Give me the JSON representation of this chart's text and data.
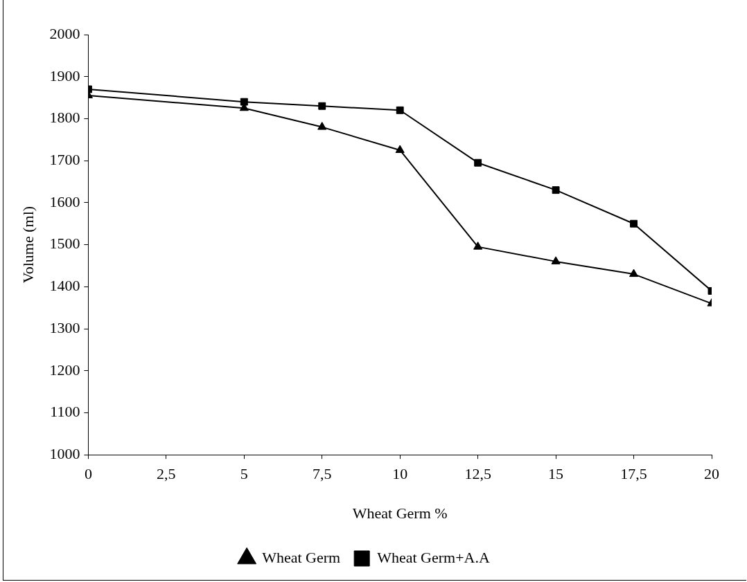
{
  "chart_data": {
    "type": "line",
    "xlabel": "Wheat Germ %",
    "ylabel": "Volume (ml)",
    "x": [
      0,
      5,
      7.5,
      10,
      12.5,
      15,
      17.5,
      20
    ],
    "series": [
      {
        "name": "Wheat Germ",
        "color": "#000000",
        "marker": "triangle",
        "values": [
          1855,
          1825,
          1780,
          1725,
          1495,
          1460,
          1430,
          1360
        ]
      },
      {
        "name": "Wheat Germ+A.A",
        "color": "#000000",
        "marker": "square",
        "values": [
          1870,
          1840,
          1830,
          1820,
          1695,
          1630,
          1550,
          1390
        ]
      }
    ],
    "xlim": [
      0,
      20
    ],
    "xticks": [
      0,
      {
        "value": 2.5,
        "label": "2,5"
      },
      5,
      {
        "value": 7.5,
        "label": "7,5"
      },
      10,
      {
        "value": 12.5,
        "label": "12,5"
      },
      15,
      {
        "value": 17.5,
        "label": "17,5"
      },
      20
    ],
    "ylim": [
      1000,
      2000
    ],
    "yticks": [
      1000,
      1100,
      1200,
      1300,
      1400,
      1500,
      1600,
      1700,
      1800,
      1900,
      2000
    ],
    "grid": false,
    "legend": "bottom",
    "line_style": "solid"
  }
}
